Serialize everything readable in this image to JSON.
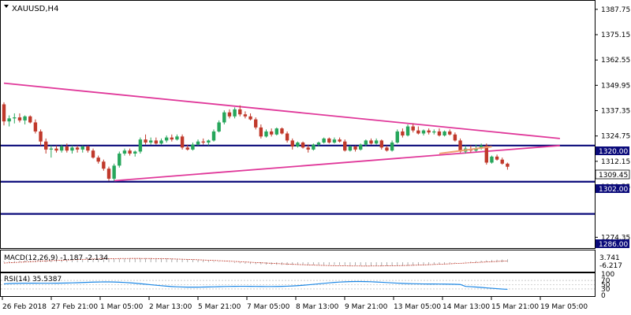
{
  "symbol_timeframe": "XAUUSD,H4",
  "price_axis": {
    "ticks": [
      "1387.75",
      "1375.15",
      "1362.55",
      "1349.95",
      "1337.35",
      "1324.75",
      "1312.15",
      "1299.55",
      "1274.35"
    ],
    "range": [
      1269,
      1392
    ]
  },
  "price_labels": {
    "level_1320": "1320.00",
    "current": "1309.45",
    "level_1302": "1302.00",
    "level_1286": "1286.00"
  },
  "time_axis": [
    "26 Feb 2018",
    "27 Feb 21:00",
    "1 Mar 05:00",
    "2 Mar 13:00",
    "5 Mar 21:00",
    "7 Mar 05:00",
    "8 Mar 13:00",
    "9 Mar 21:00",
    "13 Mar 05:00",
    "14 Mar 13:00",
    "15 Mar 21:00",
    "19 Mar 05:00"
  ],
  "macd": {
    "label": "MACD(12,26,9) -1.187 -2.134",
    "axis_top": "3.741",
    "axis_bottom": "-6.217"
  },
  "rsi": {
    "label": "RSI(14) 35.5387",
    "axis_ticks": [
      "100",
      "70",
      "50",
      "30",
      "0"
    ]
  },
  "colors": {
    "bull": "#26a65b",
    "bear": "#c0392b",
    "trendline": "#e0389a",
    "level": "#0a0a7a",
    "rsi_line": "#1e88e5",
    "macd_line": "#c0392b",
    "ma": "#f0a070"
  },
  "chart_data": {
    "type": "candlestick",
    "symbol": "XAUUSD",
    "timeframe": "H4",
    "candles_ohlc": [
      [
        1340.5,
        1341.5,
        1330.0,
        1332.0
      ],
      [
        1332.0,
        1335.0,
        1329.5,
        1333.5
      ],
      [
        1333.5,
        1336.0,
        1331.0,
        1334.0
      ],
      [
        1334.0,
        1336.0,
        1331.5,
        1332.5
      ],
      [
        1332.5,
        1335.0,
        1330.5,
        1334.5
      ],
      [
        1334.5,
        1335.0,
        1331.0,
        1331.5
      ],
      [
        1331.5,
        1333.0,
        1326.0,
        1327.0
      ],
      [
        1327.0,
        1328.0,
        1320.0,
        1322.0
      ],
      [
        1322.0,
        1323.5,
        1316.0,
        1318.0
      ],
      [
        1318.0,
        1320.0,
        1314.0,
        1318.5
      ],
      [
        1318.5,
        1320.0,
        1316.5,
        1317.5
      ],
      [
        1317.5,
        1320.5,
        1316.5,
        1319.5
      ],
      [
        1319.5,
        1321.0,
        1316.5,
        1317.5
      ],
      [
        1317.5,
        1320.0,
        1316.0,
        1319.0
      ],
      [
        1319.0,
        1320.0,
        1316.5,
        1318.0
      ],
      [
        1318.0,
        1320.0,
        1316.5,
        1319.5
      ],
      [
        1319.5,
        1320.0,
        1316.5,
        1317.5
      ],
      [
        1317.5,
        1318.5,
        1313.5,
        1314.0
      ],
      [
        1314.0,
        1315.0,
        1311.0,
        1312.0
      ],
      [
        1312.0,
        1313.0,
        1307.5,
        1308.5
      ],
      [
        1308.5,
        1309.5,
        1302.5,
        1303.5
      ],
      [
        1303.5,
        1311.0,
        1302.5,
        1310.0
      ],
      [
        1310.0,
        1317.0,
        1309.0,
        1316.0
      ],
      [
        1316.0,
        1318.5,
        1315.0,
        1317.5
      ],
      [
        1317.5,
        1318.5,
        1315.0,
        1316.0
      ],
      [
        1316.0,
        1317.5,
        1314.5,
        1317.0
      ],
      [
        1317.0,
        1324.0,
        1316.0,
        1323.0
      ],
      [
        1323.0,
        1325.5,
        1320.5,
        1321.5
      ],
      [
        1321.5,
        1324.0,
        1320.5,
        1322.5
      ],
      [
        1322.5,
        1324.0,
        1320.5,
        1321.0
      ],
      [
        1321.0,
        1323.5,
        1320.5,
        1322.5
      ],
      [
        1322.5,
        1325.0,
        1321.5,
        1324.0
      ],
      [
        1324.0,
        1325.5,
        1322.0,
        1323.0
      ],
      [
        1323.0,
        1325.5,
        1322.5,
        1324.5
      ],
      [
        1324.5,
        1325.5,
        1318.0,
        1319.0
      ],
      [
        1319.0,
        1320.5,
        1317.5,
        1318.0
      ],
      [
        1318.0,
        1321.5,
        1317.5,
        1320.5
      ],
      [
        1320.5,
        1323.0,
        1320.0,
        1322.0
      ],
      [
        1322.0,
        1323.5,
        1320.5,
        1321.5
      ],
      [
        1321.5,
        1323.0,
        1320.0,
        1322.5
      ],
      [
        1322.5,
        1328.0,
        1322.0,
        1327.0
      ],
      [
        1327.0,
        1332.5,
        1326.5,
        1331.5
      ],
      [
        1331.5,
        1337.5,
        1330.5,
        1336.5
      ],
      [
        1336.5,
        1338.0,
        1333.5,
        1334.5
      ],
      [
        1334.5,
        1339.0,
        1333.5,
        1338.0
      ],
      [
        1338.0,
        1340.0,
        1334.5,
        1335.5
      ],
      [
        1335.5,
        1337.0,
        1333.5,
        1334.5
      ],
      [
        1334.5,
        1336.0,
        1332.5,
        1333.0
      ],
      [
        1333.0,
        1334.0,
        1328.0,
        1329.0
      ],
      [
        1329.0,
        1330.5,
        1323.5,
        1324.5
      ],
      [
        1324.5,
        1328.0,
        1324.0,
        1327.0
      ],
      [
        1327.0,
        1328.5,
        1324.5,
        1325.5
      ],
      [
        1325.5,
        1329.0,
        1325.0,
        1328.5
      ],
      [
        1328.5,
        1329.0,
        1325.5,
        1326.0
      ],
      [
        1326.0,
        1327.0,
        1321.5,
        1322.5
      ],
      [
        1322.5,
        1323.5,
        1318.0,
        1319.5
      ],
      [
        1319.5,
        1322.0,
        1319.0,
        1321.5
      ],
      [
        1321.5,
        1322.0,
        1318.5,
        1319.0
      ],
      [
        1319.0,
        1320.5,
        1316.5,
        1318.0
      ],
      [
        1318.0,
        1321.0,
        1317.5,
        1320.5
      ],
      [
        1320.5,
        1322.0,
        1319.5,
        1321.5
      ],
      [
        1321.5,
        1324.0,
        1321.0,
        1323.5
      ],
      [
        1323.5,
        1324.0,
        1321.0,
        1321.5
      ],
      [
        1321.5,
        1324.0,
        1321.0,
        1323.0
      ],
      [
        1323.0,
        1324.0,
        1321.5,
        1322.0
      ],
      [
        1322.0,
        1323.0,
        1317.0,
        1317.5
      ],
      [
        1317.5,
        1320.0,
        1317.0,
        1319.5
      ],
      [
        1319.5,
        1320.0,
        1317.0,
        1318.0
      ],
      [
        1318.0,
        1321.0,
        1317.5,
        1320.5
      ],
      [
        1320.5,
        1323.0,
        1319.5,
        1322.5
      ],
      [
        1322.5,
        1323.5,
        1320.5,
        1321.0
      ],
      [
        1321.0,
        1323.5,
        1320.5,
        1322.5
      ],
      [
        1322.5,
        1323.0,
        1318.0,
        1319.0
      ],
      [
        1319.0,
        1320.0,
        1317.0,
        1317.5
      ],
      [
        1317.5,
        1322.5,
        1317.0,
        1321.5
      ],
      [
        1321.5,
        1328.0,
        1321.0,
        1327.0
      ],
      [
        1327.0,
        1328.5,
        1324.0,
        1325.0
      ],
      [
        1325.0,
        1330.5,
        1324.5,
        1329.5
      ],
      [
        1329.5,
        1331.0,
        1326.5,
        1327.5
      ],
      [
        1327.5,
        1329.5,
        1325.5,
        1326.0
      ],
      [
        1326.0,
        1328.0,
        1325.0,
        1327.5
      ],
      [
        1327.5,
        1328.5,
        1325.5,
        1326.5
      ],
      [
        1326.5,
        1328.0,
        1325.5,
        1327.0
      ],
      [
        1327.0,
        1328.5,
        1324.5,
        1325.0
      ],
      [
        1325.0,
        1327.5,
        1324.5,
        1327.0
      ],
      [
        1327.0,
        1328.0,
        1325.0,
        1325.5
      ],
      [
        1325.5,
        1326.5,
        1322.0,
        1322.5
      ],
      [
        1322.5,
        1323.5,
        1316.5,
        1317.0
      ],
      [
        1317.0,
        1320.0,
        1316.0,
        1318.5
      ],
      [
        1318.0,
        1320.0,
        1316.5,
        1317.5
      ],
      [
        1317.5,
        1320.5,
        1317.0,
        1318.5
      ],
      [
        1318.5,
        1321.0,
        1318.0,
        1320.0
      ],
      [
        1320.0,
        1321.0,
        1310.5,
        1311.5
      ],
      [
        1311.5,
        1315.0,
        1311.0,
        1314.5
      ],
      [
        1314.5,
        1315.5,
        1312.5,
        1313.0
      ],
      [
        1313.0,
        1314.0,
        1310.5,
        1311.0
      ],
      [
        1311.0,
        1311.5,
        1308.0,
        1309.45
      ]
    ],
    "levels": [
      1320.0,
      1302.0,
      1286.0
    ],
    "trendlines": [
      {
        "from": [
          0,
          1351.0
        ],
        "to": [
          106,
          1323.5
        ]
      },
      {
        "from": [
          21,
          1302.5
        ],
        "to": [
          106,
          1320.0
        ]
      }
    ],
    "macd": {
      "params": "12,26,9",
      "main": -1.187,
      "signal": -2.134,
      "axis_max": 3.741,
      "axis_min": -6.217
    },
    "rsi": {
      "period": 14,
      "value": 35.5387,
      "levels": [
        70,
        50,
        30
      ]
    },
    "x_ticks": [
      "26 Feb 2018",
      "27 Feb 21:00",
      "1 Mar 05:00",
      "2 Mar 13:00",
      "5 Mar 21:00",
      "7 Mar 05:00",
      "8 Mar 13:00",
      "9 Mar 21:00",
      "13 Mar 05:00",
      "14 Mar 13:00",
      "15 Mar 21:00",
      "19 Mar 05:00"
    ],
    "grid": false
  }
}
